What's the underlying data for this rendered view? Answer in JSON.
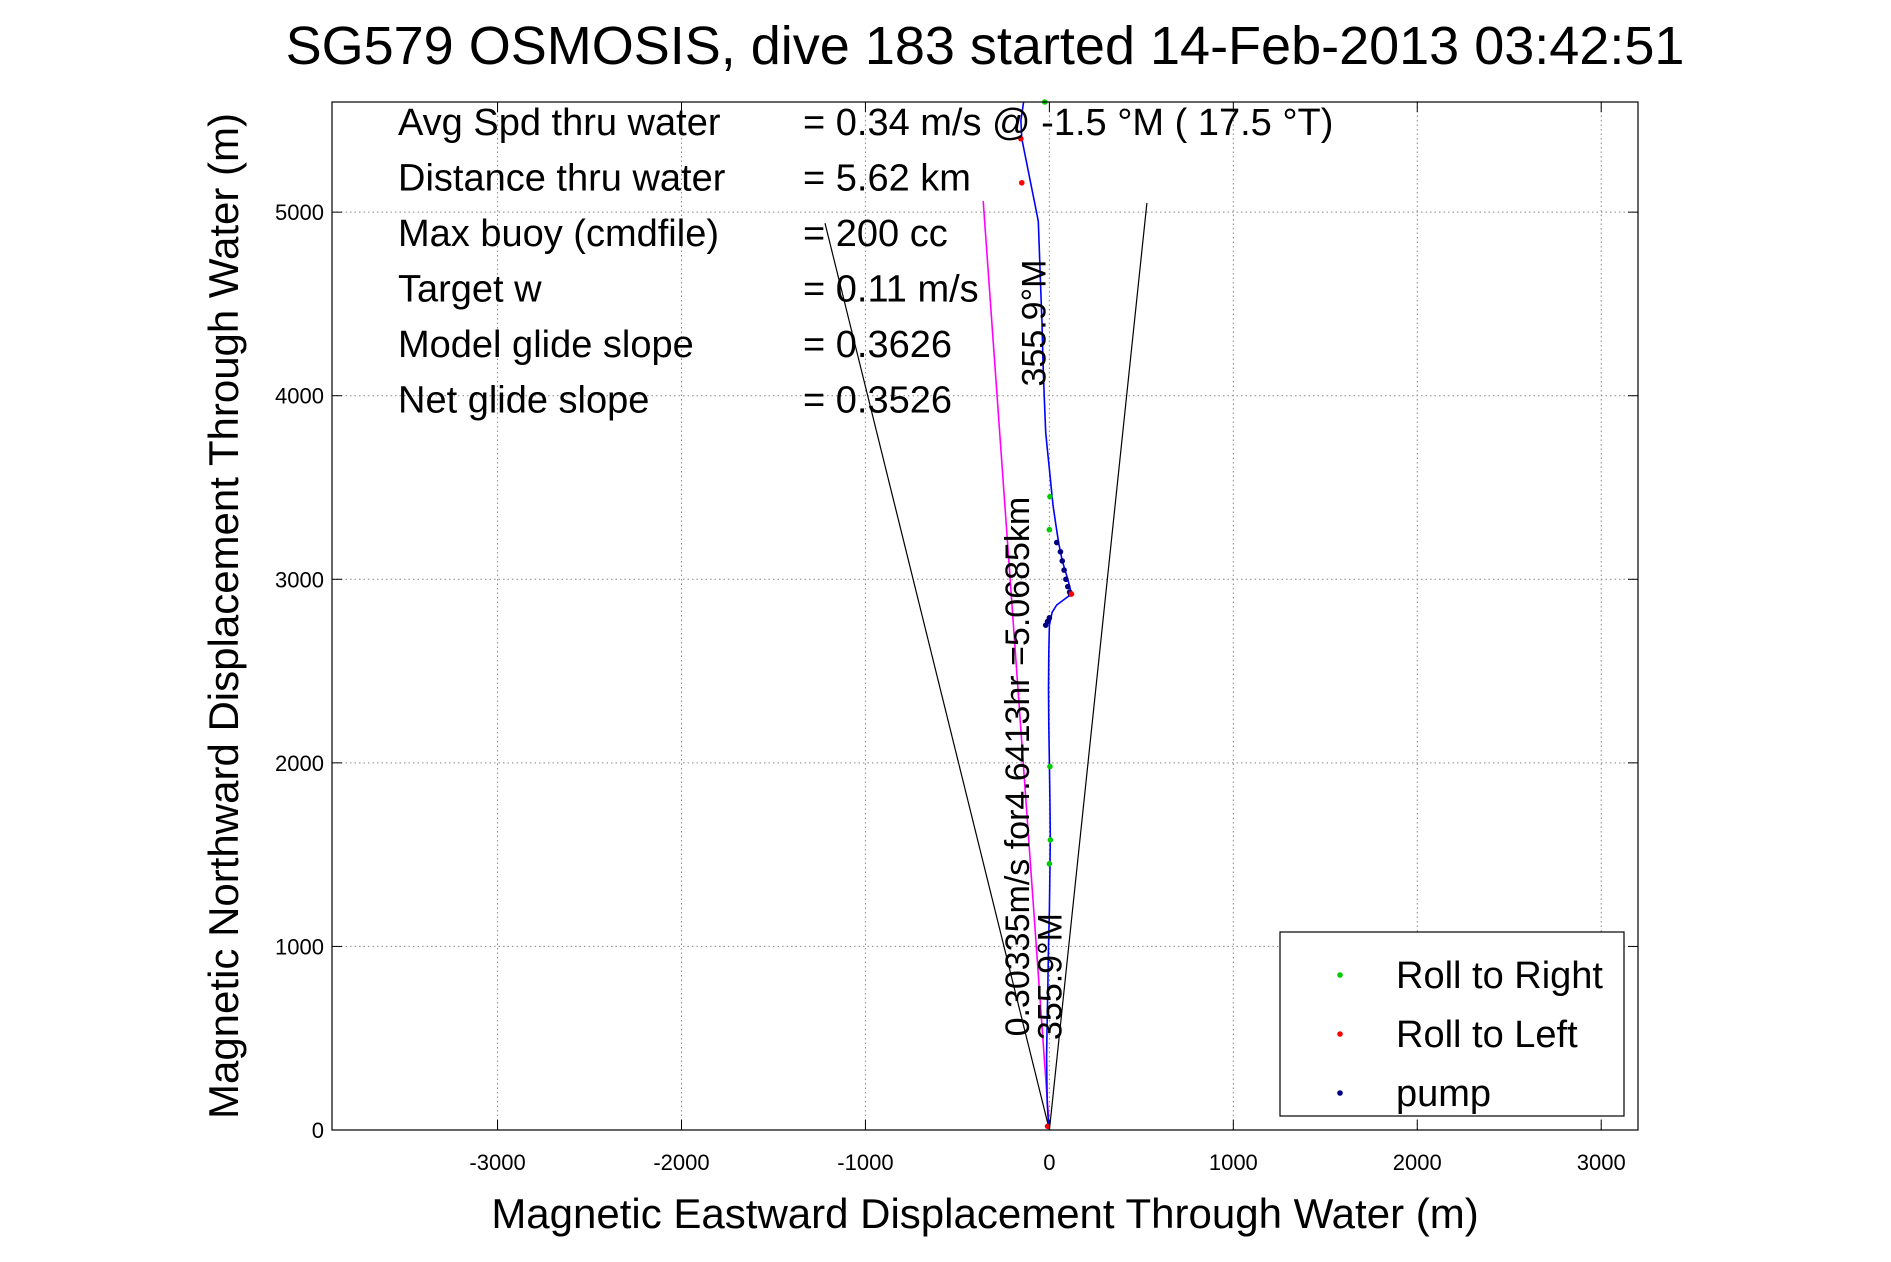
{
  "chart_data": {
    "type": "line",
    "title": "SG579 OSMOSIS, dive 183 started 14-Feb-2013 03:42:51",
    "xlabel": "Magnetic Eastward Displacement Through Water (m)",
    "ylabel": "Magnetic Northward Displacement Through Water (m)",
    "xlim": [
      -3900,
      3200
    ],
    "ylim": [
      0,
      5600
    ],
    "xticks": [
      -3000,
      -2000,
      -1000,
      0,
      1000,
      2000,
      3000
    ],
    "yticks": [
      0,
      1000,
      2000,
      3000,
      4000,
      5000
    ],
    "grid": true,
    "legend_position": "bottom-right",
    "colors": {
      "track": "#0000ff",
      "current": "#ff00ff",
      "cone": "#000000",
      "roll_right": "#00cc00",
      "roll_left": "#ff0000",
      "pump": "#000080"
    },
    "track": {
      "x": [
        0,
        -5,
        -12,
        -15,
        -12,
        -8,
        -5,
        0,
        3,
        5,
        3,
        0,
        -3,
        -5,
        -3,
        0,
        15,
        40,
        80,
        120,
        100,
        70,
        50,
        35,
        20,
        10,
        0,
        -10,
        -20,
        -28,
        -35,
        -40,
        -48,
        -55,
        -60,
        -70,
        -80,
        -100,
        -130,
        -150,
        -155,
        -140
      ],
      "y": [
        0,
        30,
        150,
        400,
        600,
        800,
        1000,
        1200,
        1400,
        1600,
        1800,
        2000,
        2200,
        2400,
        2600,
        2750,
        2820,
        2860,
        2890,
        2920,
        3000,
        3100,
        3200,
        3300,
        3400,
        3500,
        3600,
        3700,
        3800,
        4000,
        4200,
        4400,
        4600,
        4800,
        4950,
        5000,
        5050,
        5150,
        5300,
        5400,
        5500,
        5600
      ]
    },
    "current_line": {
      "x": [
        0,
        -360
      ],
      "y": [
        0,
        5060
      ]
    },
    "cone": [
      {
        "x": [
          0,
          -1220
        ],
        "y": [
          0,
          4940
        ]
      },
      {
        "x": [
          0,
          530
        ],
        "y": [
          0,
          5050
        ]
      }
    ],
    "roll_right": {
      "x": [
        0,
        5,
        3,
        3,
        0,
        -25
      ],
      "y": [
        1450,
        1580,
        1980,
        3450,
        3270,
        5600
      ]
    },
    "roll_left": {
      "x": [
        120,
        -150,
        -155,
        -10
      ],
      "y": [
        2920,
        5160,
        5400,
        20
      ]
    },
    "pump": {
      "x": [
        -20,
        -10,
        0,
        40,
        60,
        70,
        80,
        90,
        100,
        110,
        115
      ],
      "y": [
        2750,
        2770,
        2790,
        3200,
        3150,
        3100,
        3050,
        3000,
        2960,
        2930,
        2920
      ]
    },
    "info": [
      {
        "label": "Avg Spd thru water",
        "value": "=  0.34 m/s @  -1.5 °M ( 17.5 °T)"
      },
      {
        "label": "Distance thru water",
        "value": "=  5.62 km"
      },
      {
        "label": "Max buoy (cmdfile)",
        "value": "= 200 cc"
      },
      {
        "label": "Target w",
        "value": "= 0.11 m/s"
      },
      {
        "label": "Model glide slope",
        "value": "= 0.3626"
      },
      {
        "label": "Net glide slope",
        "value": "= 0.3526"
      }
    ],
    "annotations": [
      {
        "text": "355.9°M",
        "x": -20,
        "y": 4050
      },
      {
        "text": "0.30335m/s for4.6413hr =5.0685km",
        "x": -110,
        "y": 510
      },
      {
        "text": "355.9°M",
        "x": 65,
        "y": 490
      }
    ],
    "legend": [
      {
        "key": "roll_right",
        "label": "Roll to Right"
      },
      {
        "key": "roll_left",
        "label": "Roll to Left"
      },
      {
        "key": "pump",
        "label": "pump"
      }
    ]
  }
}
